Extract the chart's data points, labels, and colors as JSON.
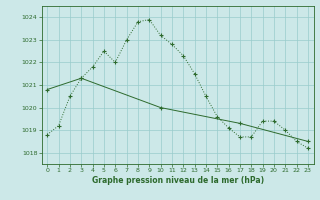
{
  "series1_x": [
    0,
    1,
    2,
    3,
    4,
    5,
    6,
    7,
    8,
    9,
    10,
    11,
    12,
    13,
    14,
    15,
    16,
    17,
    18,
    19,
    20,
    21,
    22,
    23
  ],
  "series1_y": [
    1018.8,
    1019.2,
    1020.5,
    1021.3,
    1021.8,
    1022.5,
    1022.0,
    1023.0,
    1023.8,
    1023.9,
    1023.2,
    1022.8,
    1022.3,
    1021.5,
    1020.5,
    1019.6,
    1019.1,
    1018.7,
    1018.7,
    1019.4,
    1019.4,
    1019.0,
    1018.5,
    1018.2
  ],
  "series2_x": [
    0,
    3,
    10,
    17,
    23
  ],
  "series2_y": [
    1020.8,
    1021.3,
    1020.0,
    1019.3,
    1018.5
  ],
  "line_color": "#2d6a2d",
  "bg_color": "#cce8e8",
  "grid_color": "#99cccc",
  "xlabel": "Graphe pression niveau de la mer (hPa)",
  "ylim": [
    1017.5,
    1024.5
  ],
  "xlim": [
    -0.5,
    23.5
  ],
  "yticks": [
    1018,
    1019,
    1020,
    1021,
    1022,
    1023,
    1024
  ],
  "xticks": [
    0,
    1,
    2,
    3,
    4,
    5,
    6,
    7,
    8,
    9,
    10,
    11,
    12,
    13,
    14,
    15,
    16,
    17,
    18,
    19,
    20,
    21,
    22,
    23
  ],
  "marker": "+"
}
